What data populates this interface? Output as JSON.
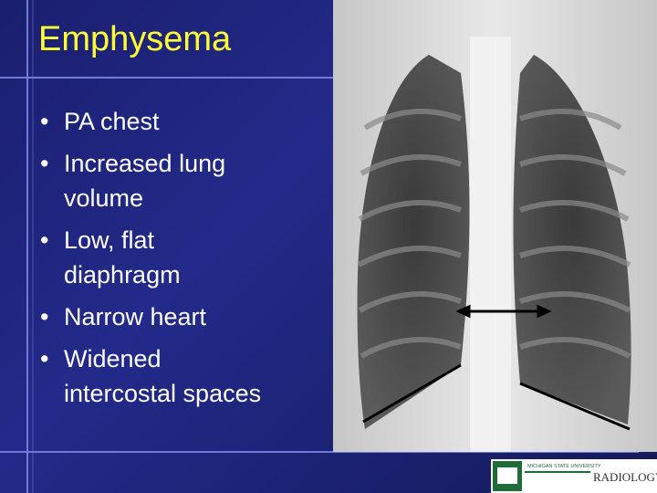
{
  "slide": {
    "title": "Emphysema",
    "bullets": [
      [
        "PA chest"
      ],
      [
        "Increased lung",
        "volume"
      ],
      [
        "Low, flat",
        "diaphragm"
      ],
      [
        "Narrow heart"
      ],
      [
        "Widened",
        "intercostal spaces"
      ]
    ],
    "logo": {
      "university": "MICHIGAN STATE UNIVERSITY",
      "department": "RADIOLOGY"
    }
  }
}
